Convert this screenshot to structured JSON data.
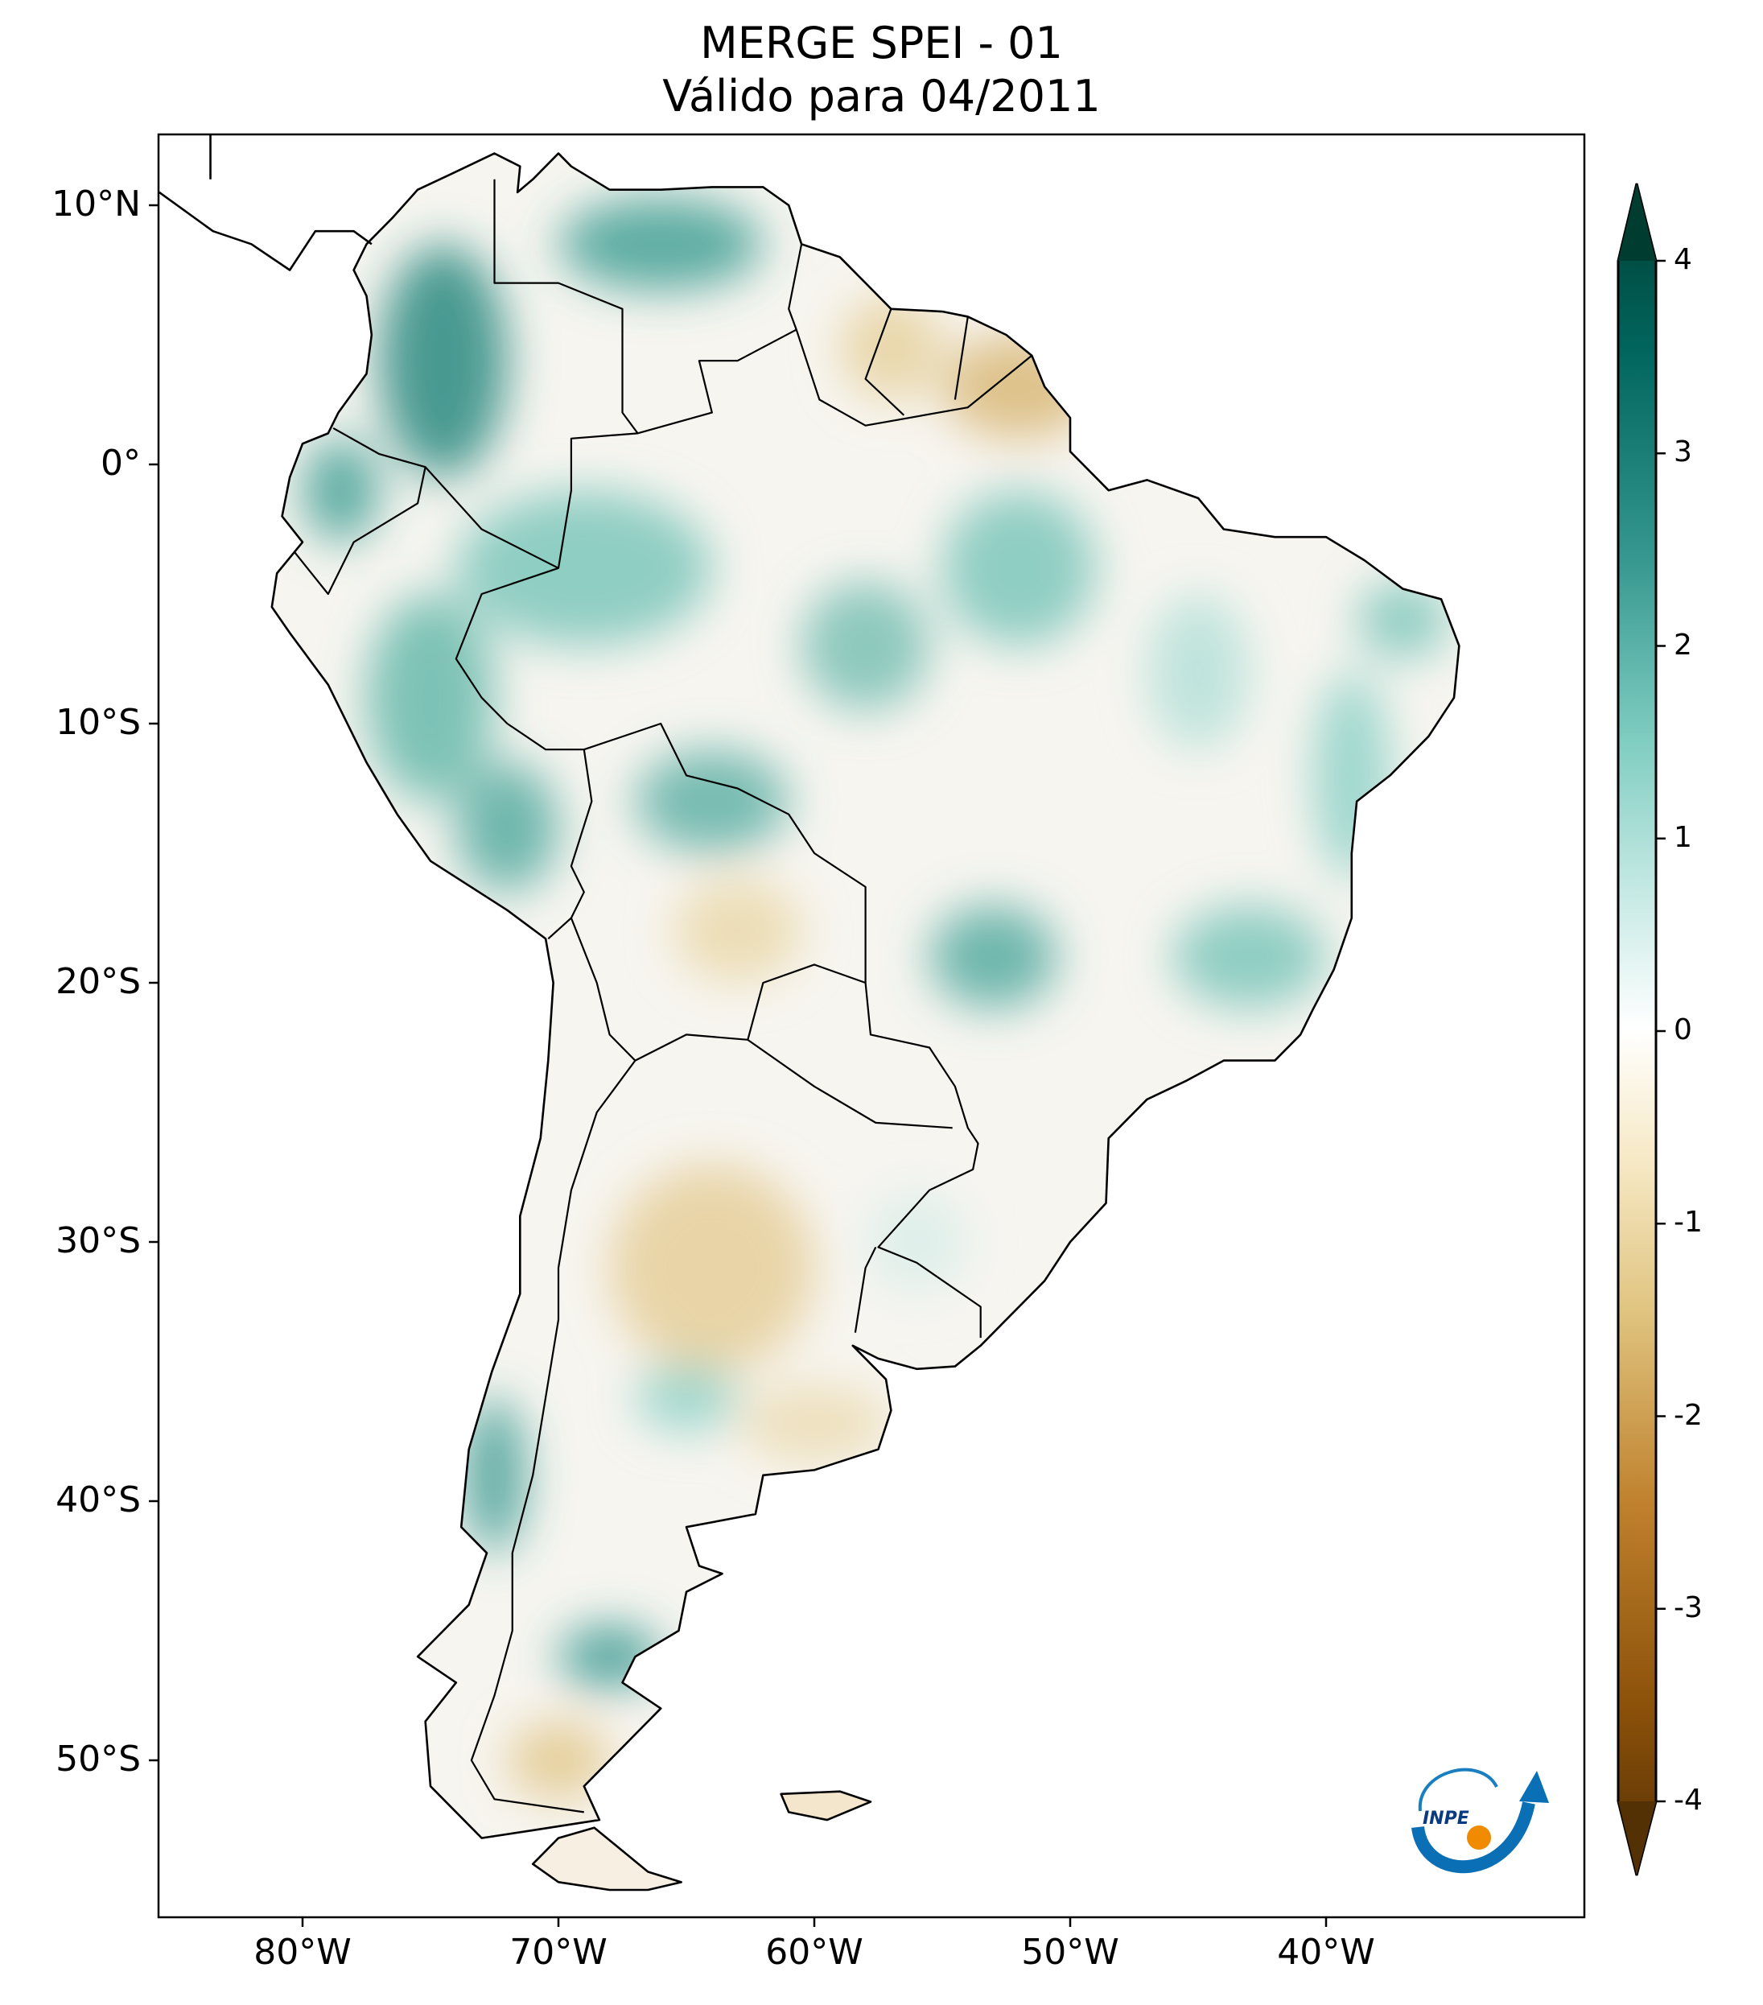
{
  "title": {
    "line1": "MERGE   SPEI - 01",
    "line2": "Válido para 04/2011"
  },
  "axes": {
    "lon_ticks": [
      {
        "value": -80,
        "label": "80°W"
      },
      {
        "value": -70,
        "label": "70°W"
      },
      {
        "value": -60,
        "label": "60°W"
      },
      {
        "value": -50,
        "label": "50°W"
      },
      {
        "value": -40,
        "label": "40°W"
      }
    ],
    "lat_ticks": [
      {
        "value": 10,
        "label": "10°N"
      },
      {
        "value": 0,
        "label": "0°"
      },
      {
        "value": -10,
        "label": "10°S"
      },
      {
        "value": -20,
        "label": "20°S"
      },
      {
        "value": -30,
        "label": "30°S"
      },
      {
        "value": -40,
        "label": "40°S"
      },
      {
        "value": -50,
        "label": "50°S"
      }
    ],
    "lon_range": [
      -85.6,
      -29.9
    ],
    "lat_range": [
      -56,
      12.7
    ]
  },
  "colorbar": {
    "colormap": "BrBG",
    "range": [
      -4,
      4
    ],
    "extend": "both",
    "ticks": [
      {
        "value": 4,
        "label": "4"
      },
      {
        "value": 3,
        "label": "3"
      },
      {
        "value": 2,
        "label": "2"
      },
      {
        "value": 1,
        "label": "1"
      },
      {
        "value": 0,
        "label": "0"
      },
      {
        "value": -1,
        "label": "-1"
      },
      {
        "value": -2,
        "label": "-2"
      },
      {
        "value": -3,
        "label": "-3"
      },
      {
        "value": -4,
        "label": "-4"
      }
    ],
    "colors": [
      "#543005",
      "#8c510a",
      "#bf812d",
      "#dfc27d",
      "#f6e8c3",
      "#ffffff",
      "#c7eae5",
      "#80cdc1",
      "#35978f",
      "#01665e",
      "#003c30"
    ]
  },
  "logo": {
    "text": "INPE"
  }
}
